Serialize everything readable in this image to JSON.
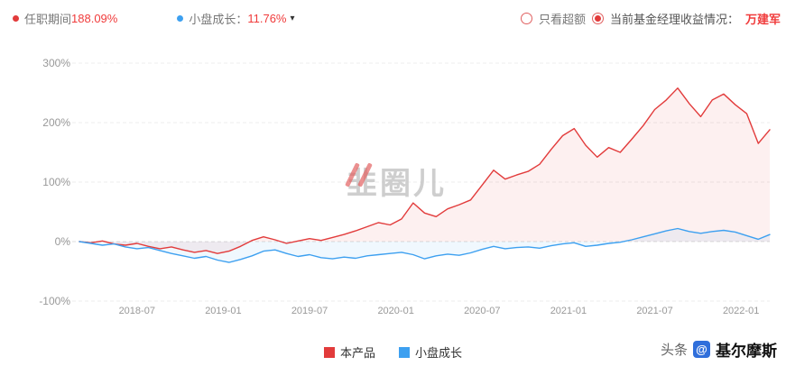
{
  "header": {
    "tenure_label": "任职期间",
    "tenure_value": "188.09%",
    "benchmark_label": "小盘成长：",
    "benchmark_value": "11.76%",
    "caret": "▾",
    "radio_excess_label": "只看超额",
    "radio_manager_label": "当前基金经理收益情况：",
    "manager_name": "万建军"
  },
  "watermark": {
    "center": "韭圈儿",
    "source_prefix": "头条",
    "source_icon": "@",
    "source_name": "基尔摩斯"
  },
  "legend": [
    {
      "label": "本产品",
      "color": "#e23b3b"
    },
    {
      "label": "小盘成长",
      "color": "#3da0f0"
    }
  ],
  "colors": {
    "accent_red": "#f03b3b",
    "line_red": "#e23b3b",
    "line_blue": "#3da0f0",
    "axis_text": "#999999",
    "grid": "#ececec"
  },
  "chart_data": {
    "type": "line",
    "title": "",
    "xlabel": "",
    "ylabel": "",
    "y_ticks": [
      300,
      200,
      100,
      0,
      -100
    ],
    "y_tick_suffix": "%",
    "ylim": [
      -100,
      320
    ],
    "x_start": "2018-03",
    "x_end": "2022-03",
    "total_months": 48,
    "x_tick_months": [
      4,
      10,
      16,
      22,
      28,
      34,
      40,
      46
    ],
    "x_tick_labels": [
      "2018-07",
      "2019-01",
      "2019-07",
      "2020-01",
      "2020-07",
      "2021-01",
      "2021-07",
      "2022-01"
    ],
    "grid": "dashed-horizontal",
    "legend_position": "bottom-center",
    "series": [
      {
        "name": "本产品",
        "color": "#e23b3b",
        "fill": "rgba(226,59,59,0.08)",
        "end_value": 188.09,
        "values": [
          0,
          -2,
          1,
          -4,
          -6,
          -3,
          -8,
          -12,
          -9,
          -14,
          -18,
          -15,
          -20,
          -16,
          -8,
          2,
          8,
          3,
          -3,
          1,
          5,
          2,
          7,
          12,
          18,
          25,
          32,
          28,
          38,
          65,
          48,
          42,
          55,
          62,
          70,
          95,
          120,
          105,
          112,
          118,
          130,
          155,
          178,
          190,
          162,
          142,
          158,
          150,
          172,
          195,
          222,
          238,
          258,
          232,
          210,
          238,
          248,
          230,
          215,
          165,
          188
        ]
      },
      {
        "name": "小盘成长",
        "color": "#3da0f0",
        "fill": "rgba(61,160,240,0.08)",
        "end_value": 11.76,
        "values": [
          0,
          -3,
          -6,
          -4,
          -9,
          -12,
          -10,
          -15,
          -20,
          -24,
          -28,
          -25,
          -31,
          -35,
          -30,
          -24,
          -16,
          -14,
          -20,
          -25,
          -22,
          -27,
          -29,
          -26,
          -28,
          -24,
          -22,
          -20,
          -18,
          -22,
          -29,
          -24,
          -21,
          -23,
          -19,
          -13,
          -8,
          -12,
          -10,
          -9,
          -11,
          -7,
          -4,
          -2,
          -8,
          -6,
          -3,
          -1,
          3,
          8,
          13,
          18,
          22,
          17,
          14,
          17,
          19,
          16,
          10,
          4,
          11.76
        ]
      }
    ]
  }
}
